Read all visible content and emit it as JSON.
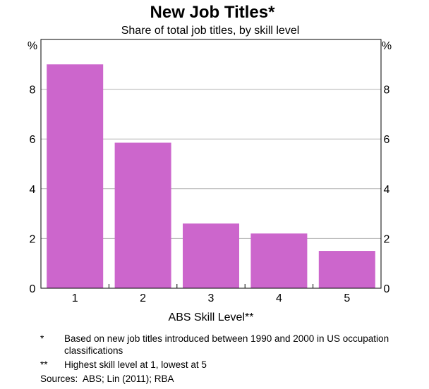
{
  "chart_data": {
    "type": "bar",
    "title": "New Job Titles*",
    "subtitle": "Share of total job titles, by skill level",
    "xlabel": "ABS Skill Level**",
    "ylabel_left": "%",
    "ylabel_right": "%",
    "categories": [
      "1",
      "2",
      "3",
      "4",
      "5"
    ],
    "values": [
      9.0,
      5.85,
      2.6,
      2.2,
      1.5
    ],
    "ylim": [
      0,
      10
    ],
    "yticks": [
      0,
      2,
      4,
      6,
      8
    ],
    "grid": true,
    "bar_color": "#cc66cc",
    "grid_color": "#b3b3b3"
  },
  "notes": [
    {
      "mark": "*",
      "text": "Based on new job titles introduced between 1990 and 2000 in US occupation classifications"
    },
    {
      "mark": "**",
      "text": "Highest skill level at 1, lowest at 5"
    }
  ],
  "sources": {
    "label": "Sources:",
    "text": "ABS; Lin (2011); RBA"
  }
}
